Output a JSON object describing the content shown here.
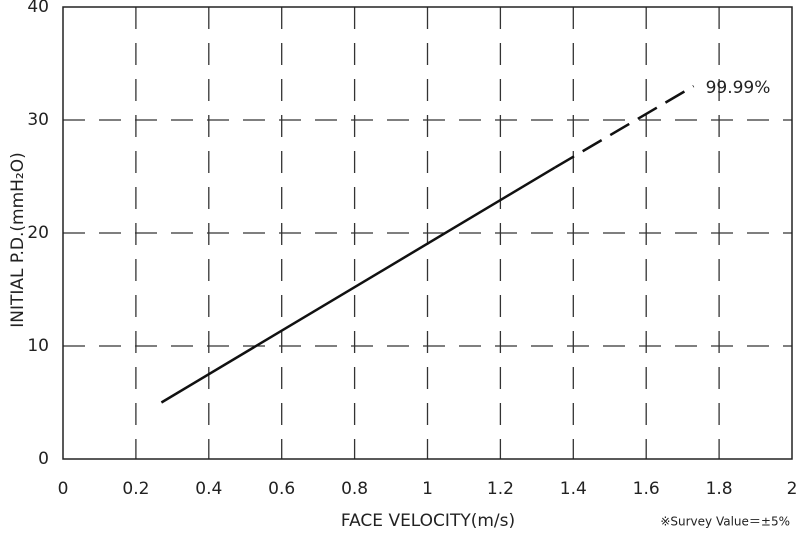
{
  "chart_data": {
    "type": "line",
    "x_label": "FACE VELOCITY(m/s)",
    "y_label": "INITIAL P.D.(mmH₂O)",
    "annotation": "99.99%",
    "note": "※Survey Value＝±5%",
    "series": [
      {
        "color": "#111111",
        "dashed": false,
        "x": [
          0.27,
          1.35
        ],
        "values": [
          5,
          25.8
        ]
      },
      {
        "color": "#111111",
        "dashed": true,
        "x": [
          1.35,
          1.73
        ],
        "values": [
          25.8,
          33
        ]
      }
    ],
    "xlim": [
      0,
      2
    ],
    "xticks": [
      0,
      0.2,
      0.4,
      0.6,
      0.8,
      1,
      1.2,
      1.4,
      1.6,
      1.8,
      2
    ],
    "ylim": [
      0,
      40
    ],
    "yticks": [
      0,
      10,
      20,
      30,
      40
    ],
    "grid": true
  }
}
